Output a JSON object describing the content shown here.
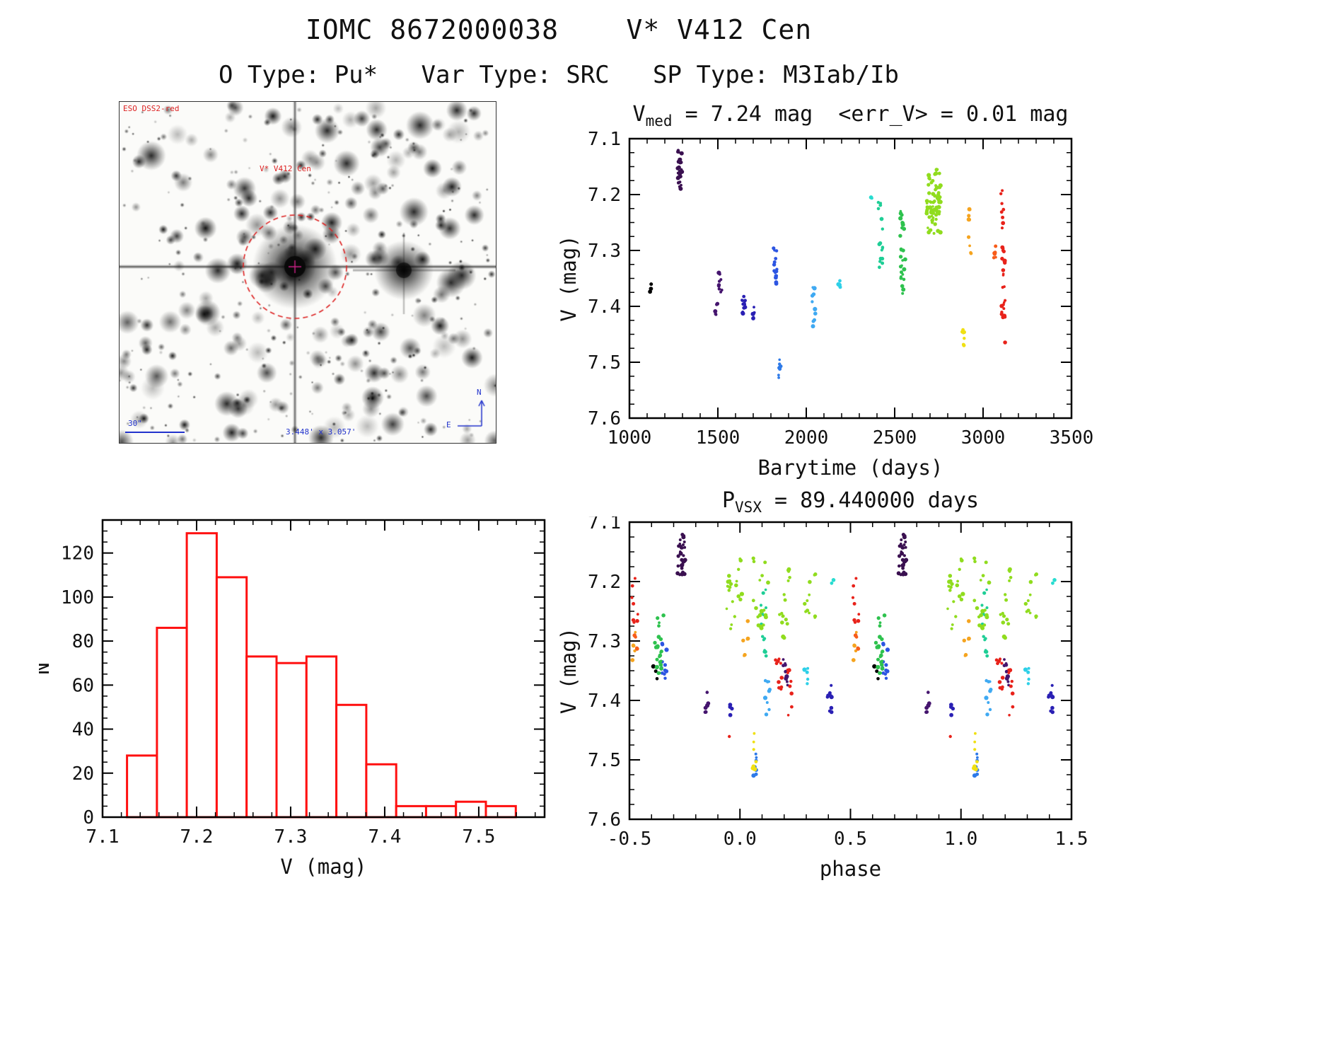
{
  "header": {
    "title": "IOMC 8672000038    V* V412 Cen",
    "subtitle": "O Type: Pu*   Var Type: SRC   SP Type: M3Iab/Ib"
  },
  "finder": {
    "survey_label": "ESO DSS2-red",
    "target_label": "V* V412 Cen",
    "scale_label": "30\"",
    "fov_label": "3.448' x 3.057'",
    "compass_north": "N",
    "compass_east": "E",
    "annotation_color": "#dd2222",
    "compass_color": "#2233cc"
  },
  "chart_data": {
    "lightcurve": {
      "type": "scatter",
      "title": {
        "main": "V",
        "sub": "med",
        "rest": " = 7.24 mag  <err_V> = 0.01 mag"
      },
      "xlabel": "Barytime (days)",
      "ylabel": "V (mag)",
      "xlim": [
        1000,
        3500
      ],
      "ylim": [
        7.1,
        7.6
      ],
      "xticks": [
        1000,
        1500,
        2000,
        2500,
        3000,
        3500
      ],
      "xtick_labels": [
        "1000",
        "1500",
        "2000",
        "2500",
        "3000",
        "3500"
      ],
      "yticks": [
        7.1,
        7.2,
        7.3,
        7.4,
        7.5,
        7.6
      ],
      "ytick_labels": [
        "7.1",
        "7.2",
        "7.3",
        "7.4",
        "7.5",
        "7.6"
      ],
      "xminor": 100,
      "yminor": 0.025,
      "grid": false,
      "clusters": [
        {
          "x": 1120,
          "x_spread": 8,
          "color": "#000000",
          "y_min": 7.355,
          "y_max": 7.385,
          "n": 3
        },
        {
          "x": 1285,
          "x_spread": 12,
          "color": "#3a1050",
          "y_min": 7.12,
          "y_max": 7.19,
          "n": 30
        },
        {
          "x": 1490,
          "x_spread": 8,
          "color": "#45156e",
          "y_min": 7.39,
          "y_max": 7.42,
          "n": 6
        },
        {
          "x": 1515,
          "x_spread": 10,
          "color": "#45156e",
          "y_min": 7.33,
          "y_max": 7.375,
          "n": 9
        },
        {
          "x": 1645,
          "x_spread": 12,
          "color": "#2a20b4",
          "y_min": 7.37,
          "y_max": 7.43,
          "n": 12
        },
        {
          "x": 1700,
          "x_spread": 8,
          "color": "#2a20b4",
          "y_min": 7.4,
          "y_max": 7.425,
          "n": 5
        },
        {
          "x": 1825,
          "x_spread": 10,
          "color": "#2c55e2",
          "y_min": 7.29,
          "y_max": 7.36,
          "n": 14
        },
        {
          "x": 1850,
          "x_spread": 8,
          "color": "#2e7ae8",
          "y_min": 7.49,
          "y_max": 7.53,
          "n": 8
        },
        {
          "x": 2045,
          "x_spread": 12,
          "color": "#3fa9f2",
          "y_min": 7.36,
          "y_max": 7.44,
          "n": 10
        },
        {
          "x": 2185,
          "x_spread": 8,
          "color": "#2ed0e8",
          "y_min": 7.345,
          "y_max": 7.375,
          "n": 5
        },
        {
          "x": 2365,
          "x_spread": 6,
          "color": "#28dcd0",
          "y_min": 7.195,
          "y_max": 7.21,
          "n": 2
        },
        {
          "x": 2420,
          "x_spread": 15,
          "color": "#1fce96",
          "y_min": 7.21,
          "y_max": 7.335,
          "n": 16
        },
        {
          "x": 2545,
          "x_spread": 15,
          "color": "#2ec24e",
          "y_min": 7.22,
          "y_max": 7.385,
          "n": 28
        },
        {
          "x": 2720,
          "x_spread": 40,
          "color": "#90dc1e",
          "y_min": 7.155,
          "y_max": 7.27,
          "n": 70
        },
        {
          "x": 2890,
          "x_spread": 8,
          "color": "#f0e012",
          "y_min": 7.44,
          "y_max": 7.485,
          "n": 7
        },
        {
          "x": 2925,
          "x_spread": 10,
          "color": "#f5a41f",
          "y_min": 7.21,
          "y_max": 7.31,
          "n": 9
        },
        {
          "x": 3065,
          "x_spread": 8,
          "color": "#f75c1a",
          "y_min": 7.29,
          "y_max": 7.315,
          "n": 6
        },
        {
          "x": 3110,
          "x_spread": 10,
          "color": "#e8221a",
          "y_min": 7.19,
          "y_max": 7.26,
          "n": 8
        },
        {
          "x": 3115,
          "x_spread": 10,
          "color": "#e8221a",
          "y_min": 7.29,
          "y_max": 7.42,
          "n": 26
        },
        {
          "x": 3120,
          "x_spread": 5,
          "color": "#e8221a",
          "y_min": 7.455,
          "y_max": 7.465,
          "n": 1
        }
      ]
    },
    "histogram": {
      "type": "bar",
      "title": "",
      "xlabel": "V (mag)",
      "ylabel": "N",
      "xlim": [
        7.1,
        7.57
      ],
      "ylim": [
        0,
        135
      ],
      "xticks": [
        7.1,
        7.2,
        7.3,
        7.4,
        7.5
      ],
      "xtick_labels": [
        "7.1",
        "7.2",
        "7.3",
        "7.4",
        "7.5"
      ],
      "yticks": [
        0,
        20,
        40,
        60,
        80,
        100,
        120
      ],
      "ytick_labels": [
        "0",
        "20",
        "40",
        "60",
        "80",
        "100",
        "120"
      ],
      "xminor": 0.02,
      "yminor": 5,
      "grid": false,
      "bin_start": 7.126,
      "bin_width": 0.0318,
      "counts": [
        28,
        86,
        129,
        109,
        73,
        70,
        73,
        51,
        24,
        5,
        5,
        7,
        5
      ],
      "bar_color": "#ff1010"
    },
    "phase_curve": {
      "type": "scatter",
      "title": {
        "main": "P",
        "sub": "VSX",
        "rest": " = 89.440000 days"
      },
      "xlabel": "phase",
      "ylabel": "V (mag)",
      "xlim": [
        -0.5,
        1.5
      ],
      "ylim": [
        7.1,
        7.6
      ],
      "xticks": [
        -0.5,
        0.0,
        0.5,
        1.0,
        1.5
      ],
      "xtick_labels": [
        "-0.5",
        "0.0",
        "0.5",
        "1.0",
        "1.5"
      ],
      "yticks": [
        7.1,
        7.2,
        7.3,
        7.4,
        7.5,
        7.6
      ],
      "ytick_labels": [
        "7.1",
        "7.2",
        "7.3",
        "7.4",
        "7.5",
        "7.6"
      ],
      "xminor": 0.1,
      "yminor": 0.025,
      "grid": false,
      "fold": true,
      "clusters": [
        {
          "x": 0.62,
          "x_spread": 0.012,
          "color": "#000000",
          "y_min": 7.34,
          "y_max": 7.385,
          "n": 3
        },
        {
          "x": 0.735,
          "x_spread": 0.018,
          "color": "#3a1050",
          "y_min": 7.12,
          "y_max": 7.19,
          "n": 30
        },
        {
          "x": 0.85,
          "x_spread": 0.01,
          "color": "#45156e",
          "y_min": 7.38,
          "y_max": 7.42,
          "n": 6
        },
        {
          "x": 0.205,
          "x_spread": 0.014,
          "color": "#45156e",
          "y_min": 7.33,
          "y_max": 7.375,
          "n": 9
        },
        {
          "x": 0.405,
          "x_spread": 0.014,
          "color": "#2a20b4",
          "y_min": 7.37,
          "y_max": 7.43,
          "n": 10
        },
        {
          "x": 0.955,
          "x_spread": 0.01,
          "color": "#2a20b4",
          "y_min": 7.4,
          "y_max": 7.425,
          "n": 5
        },
        {
          "x": 0.655,
          "x_spread": 0.014,
          "color": "#2c55e2",
          "y_min": 7.3,
          "y_max": 7.365,
          "n": 12
        },
        {
          "x": 0.065,
          "x_spread": 0.01,
          "color": "#2e7ae8",
          "y_min": 7.49,
          "y_max": 7.53,
          "n": 8
        },
        {
          "x": 0.125,
          "x_spread": 0.012,
          "color": "#3fa9f2",
          "y_min": 7.36,
          "y_max": 7.44,
          "n": 9
        },
        {
          "x": 0.3,
          "x_spread": 0.01,
          "color": "#2ed0e8",
          "y_min": 7.345,
          "y_max": 7.375,
          "n": 5
        },
        {
          "x": 0.42,
          "x_spread": 0.006,
          "color": "#28dcd0",
          "y_min": 7.195,
          "y_max": 7.21,
          "n": 2
        },
        {
          "x": 0.105,
          "x_spread": 0.015,
          "color": "#1fce96",
          "y_min": 7.21,
          "y_max": 7.335,
          "n": 14
        },
        {
          "x": 0.635,
          "x_spread": 0.02,
          "color": "#2ec24e",
          "y_min": 7.25,
          "y_max": 7.36,
          "n": 24
        },
        {
          "x": 0.975,
          "x_spread": 0.035,
          "color": "#90dc1e",
          "y_min": 7.16,
          "y_max": 7.28,
          "n": 20
        },
        {
          "x": 0.095,
          "x_spread": 0.035,
          "color": "#90dc1e",
          "y_min": 7.16,
          "y_max": 7.285,
          "n": 18
        },
        {
          "x": 0.2,
          "x_spread": 0.03,
          "color": "#90dc1e",
          "y_min": 7.17,
          "y_max": 7.3,
          "n": 15
        },
        {
          "x": 0.315,
          "x_spread": 0.028,
          "color": "#90dc1e",
          "y_min": 7.18,
          "y_max": 7.3,
          "n": 11
        },
        {
          "x": 0.025,
          "x_spread": 0.012,
          "color": "#f5a41f",
          "y_min": 7.26,
          "y_max": 7.34,
          "n": 6
        },
        {
          "x": 0.52,
          "x_spread": 0.01,
          "color": "#f5a41f",
          "y_min": 7.28,
          "y_max": 7.335,
          "n": 5
        },
        {
          "x": 0.065,
          "x_spread": 0.008,
          "color": "#f0e012",
          "y_min": 7.44,
          "y_max": 7.52,
          "n": 7
        },
        {
          "x": 0.53,
          "x_spread": 0.008,
          "color": "#f75c1a",
          "y_min": 7.29,
          "y_max": 7.315,
          "n": 4
        },
        {
          "x": 0.525,
          "x_spread": 0.014,
          "color": "#e8221a",
          "y_min": 7.19,
          "y_max": 7.27,
          "n": 8
        },
        {
          "x": 0.175,
          "x_spread": 0.014,
          "color": "#e8221a",
          "y_min": 7.33,
          "y_max": 7.385,
          "n": 10
        },
        {
          "x": 0.225,
          "x_spread": 0.012,
          "color": "#e8221a",
          "y_min": 7.34,
          "y_max": 7.445,
          "n": 8
        },
        {
          "x": 0.95,
          "x_spread": 0.006,
          "color": "#e8221a",
          "y_min": 7.455,
          "y_max": 7.465,
          "n": 1
        }
      ]
    }
  }
}
